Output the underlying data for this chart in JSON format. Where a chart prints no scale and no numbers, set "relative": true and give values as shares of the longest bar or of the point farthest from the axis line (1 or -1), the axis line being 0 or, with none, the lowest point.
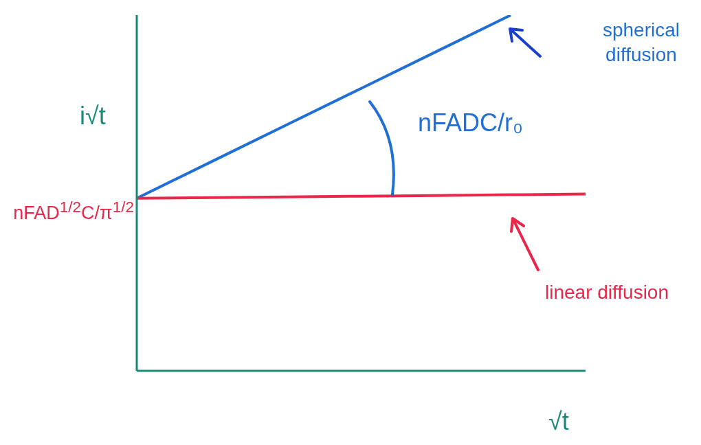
{
  "chart_data": {
    "type": "line",
    "relative": true,
    "xlabel": "√t",
    "ylabel": "i√t",
    "categories": [
      null,
      null,
      null,
      null,
      null,
      null,
      null
    ],
    "marker": "none",
    "series": [
      {
        "name": "spherical diffusion",
        "color": "#1f6fd6",
        "values": [
          0.485,
          0.588,
          0.691,
          0.794,
          0.897,
          1.0,
          null
        ]
      },
      {
        "name": "linear diffusion",
        "color": "#e8274b",
        "values": [
          0.485,
          0.487,
          0.489,
          0.491,
          0.493,
          0.495,
          0.497
        ]
      }
    ],
    "annotations": [
      "nFAD$^{1/2}$C/π$^{1/2}$",
      "nFADC/r₀"
    ]
  }
}
